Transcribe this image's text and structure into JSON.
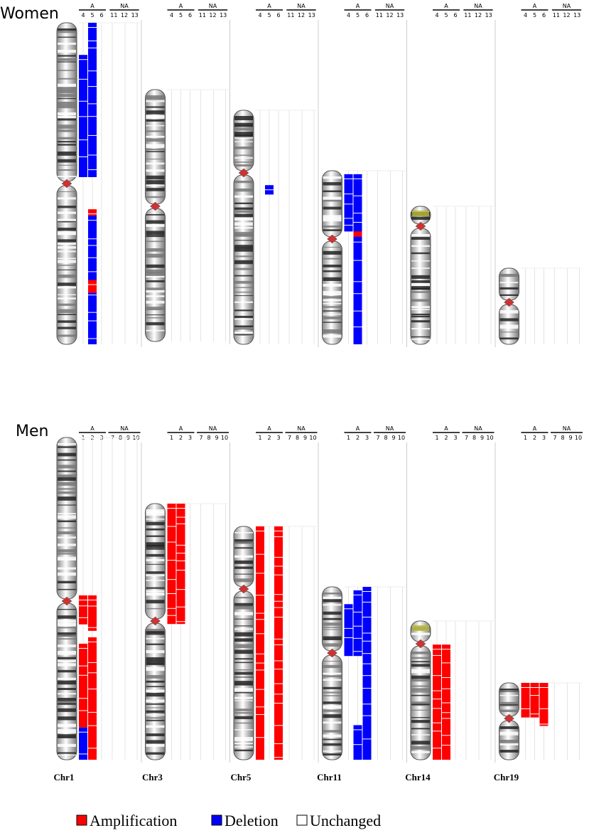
{
  "panels": [
    {
      "title": "Women",
      "groups": [
        {
          "label": "A",
          "samples": [
            4,
            5,
            6
          ]
        },
        {
          "label": "NA",
          "samples": [
            11,
            12,
            13
          ]
        }
      ]
    },
    {
      "title": "Men",
      "groups": [
        {
          "label": "A",
          "samples": [
            1,
            2,
            3
          ]
        },
        {
          "label": "NA",
          "samples": [
            7,
            8,
            9,
            10
          ]
        }
      ]
    }
  ],
  "chromosomes": [
    "Chr1",
    "Chr3",
    "Chr5",
    "Chr11",
    "Chr14",
    "Chr19"
  ],
  "legend": [
    "Amplification",
    "Deletion",
    "Unchanged"
  ]
}
